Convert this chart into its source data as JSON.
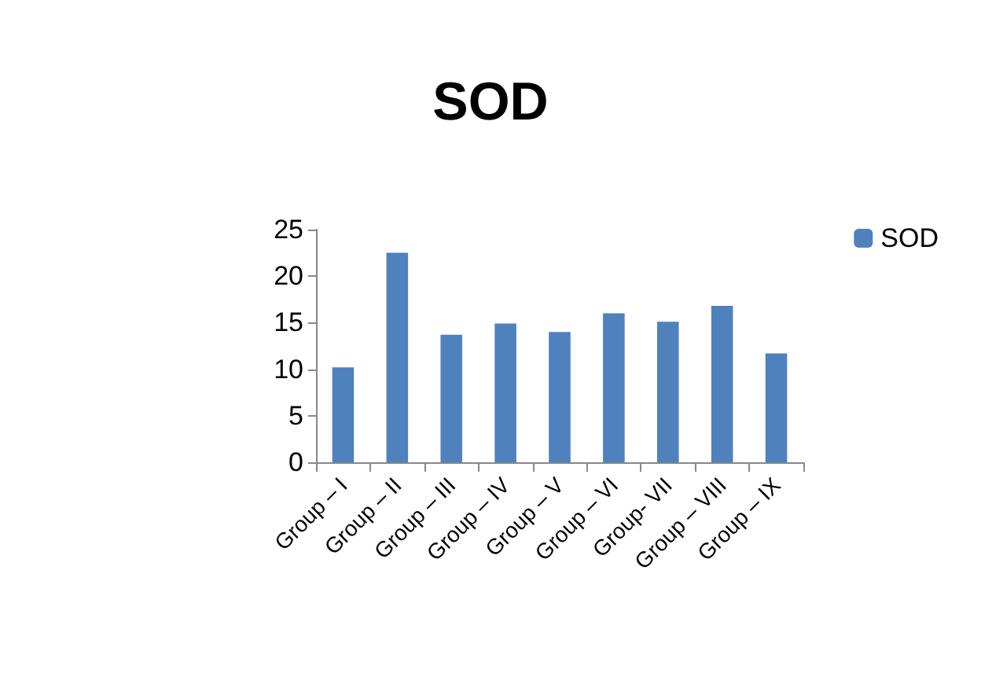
{
  "chart_data": {
    "type": "bar",
    "title": "SOD",
    "categories": [
      "Group – I",
      "Group – II",
      "Group – III",
      "Group – IV",
      "Group – V",
      "Group – VI",
      "Group- VII",
      "Group – VIII",
      "Group – IX"
    ],
    "series": [
      {
        "name": "SOD",
        "color": "#4f81bd",
        "values": [
          10.2,
          22.5,
          13.7,
          14.9,
          14.0,
          16.0,
          15.1,
          16.8,
          11.7
        ]
      }
    ],
    "ylim": [
      0,
      25
    ],
    "yticks": [
      0,
      5,
      10,
      15,
      20,
      25
    ],
    "grid": false,
    "legend": "top right"
  }
}
